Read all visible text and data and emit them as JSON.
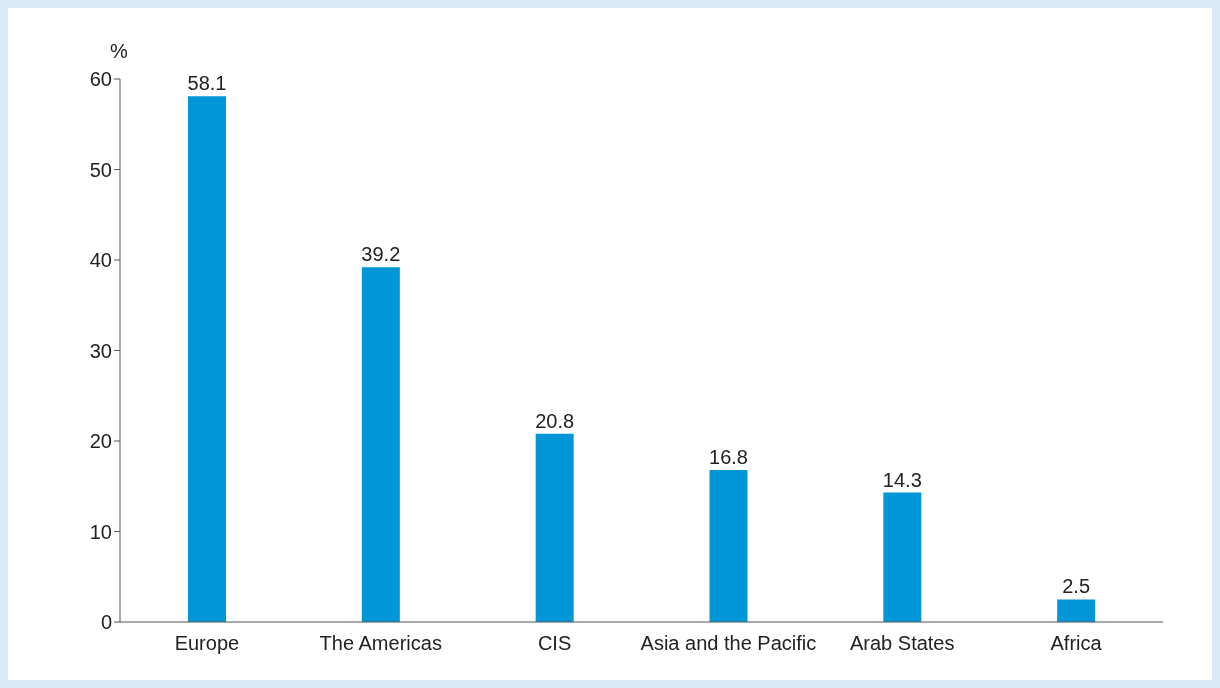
{
  "chart_data": {
    "type": "bar",
    "ylabel": "%",
    "categories": [
      "Europe",
      "The Americas",
      "CIS",
      "Asia and the Pacific",
      "Arab States",
      "Africa"
    ],
    "values": [
      58.1,
      39.2,
      20.8,
      16.8,
      14.3,
      2.5
    ],
    "color": "#0096d8",
    "ylim": [
      0,
      60
    ],
    "yticks": [
      0,
      10,
      20,
      30,
      40,
      50,
      60
    ],
    "grid": false,
    "data_labels": true
  }
}
